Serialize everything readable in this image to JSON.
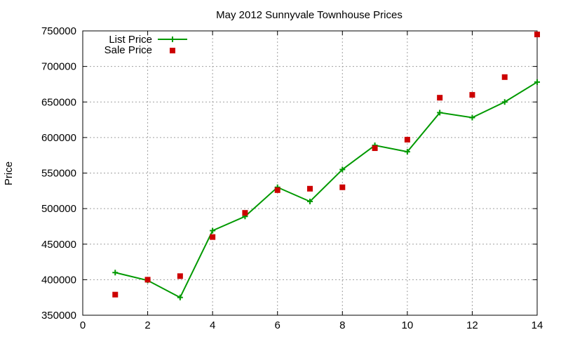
{
  "chart_data": {
    "type": "line",
    "title": "May 2012 Sunnyvale Townhouse Prices",
    "xlabel": "",
    "ylabel": "Price",
    "xlim": [
      0,
      14
    ],
    "ylim": [
      350000,
      750000
    ],
    "xticks": [
      0,
      2,
      4,
      6,
      8,
      10,
      12,
      14
    ],
    "yticks": [
      350000,
      400000,
      450000,
      500000,
      550000,
      600000,
      650000,
      700000,
      750000
    ],
    "grid": true,
    "legend_position": "top-left",
    "series": [
      {
        "name": "List Price",
        "style": "line-with-plus-markers",
        "color": "#009900",
        "x": [
          1,
          2,
          3,
          4,
          5,
          6,
          7,
          8,
          9,
          10,
          11,
          12,
          13,
          14
        ],
        "y": [
          410000,
          399000,
          375000,
          469000,
          489000,
          530000,
          510000,
          555000,
          589000,
          580000,
          635000,
          628000,
          650000,
          678000
        ]
      },
      {
        "name": "Sale Price",
        "style": "square-markers",
        "color": "#cc0000",
        "x": [
          1,
          2,
          3,
          4,
          5,
          6,
          7,
          8,
          9,
          10,
          11,
          12,
          13,
          14
        ],
        "y": [
          379000,
          400000,
          405000,
          460000,
          494000,
          526000,
          528000,
          530000,
          585000,
          597000,
          656000,
          660000,
          685000,
          745000
        ]
      }
    ]
  }
}
